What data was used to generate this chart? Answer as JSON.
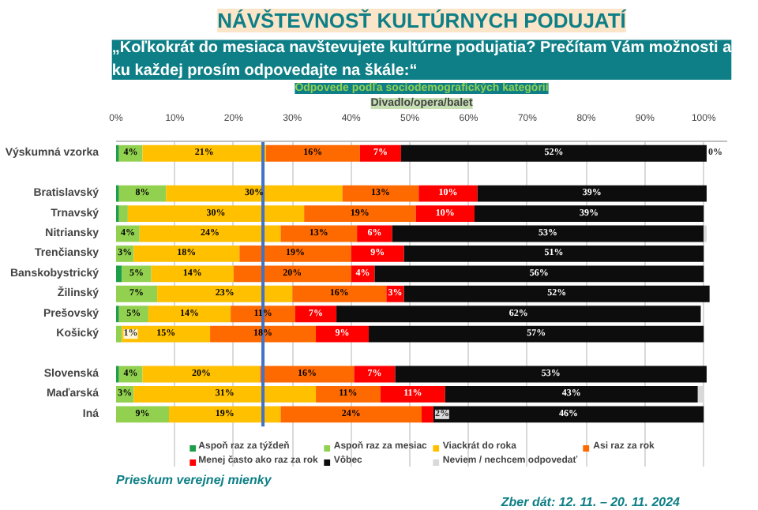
{
  "chart_data": {
    "type": "bar",
    "orientation": "horizontal",
    "stacked": true,
    "title": "NÁVŠTEVNOSŤ KULTÚRNYCH PODUJATÍ",
    "subtitle": "„Koľkokrát do mesiaca navštevujete kultúrne podujatia? Prečítam Vám možnosti a ku každej prosím odpovedajte na škále:“",
    "annotations": [
      "Odpovede podľa sociodemografických kategórií",
      "Divadlo/opera/balet",
      "Prieskum verejnej mienky",
      "Zber dát: 12. 11. – 20. 11. 2024"
    ],
    "categories": [
      "Výskumná vzorka",
      null,
      "Bratislavský",
      "Trnavský",
      "Nitriansky",
      "Trenčiansky",
      "Banskobystrický",
      "Žilinský",
      "Prešovský",
      "Košický",
      null,
      "Slovenská",
      "Maďarská",
      "Iná"
    ],
    "series": [
      {
        "name": "Aspoň raz za týždeň",
        "color": "#1f9e4a",
        "values": [
          0.5,
          null,
          0.5,
          0.5,
          0,
          0,
          1,
          0,
          0.5,
          0,
          null,
          0.5,
          0,
          0
        ],
        "value_labels": [
          null,
          null,
          null,
          null,
          null,
          null,
          null,
          null,
          null,
          null,
          null,
          null,
          null,
          null
        ]
      },
      {
        "name": "Aspoň raz za mesiac",
        "color": "#92d050",
        "values": [
          4,
          null,
          8,
          1.5,
          4,
          3,
          5,
          7,
          5,
          1,
          null,
          4,
          3,
          9
        ],
        "value_labels": [
          "4%",
          null,
          "8%",
          null,
          "4%",
          "3%",
          "5%",
          "7%",
          "5%",
          "1%",
          null,
          "4%",
          "3%",
          "9%"
        ]
      },
      {
        "name": "Viackrát do roka",
        "color": "#ffc000",
        "values": [
          21,
          null,
          30,
          30,
          24,
          18,
          14,
          23,
          14,
          15,
          null,
          20,
          31,
          19
        ],
        "value_labels": [
          "21%",
          null,
          "30%",
          "30%",
          "24%",
          "18%",
          "14%",
          "23%",
          "14%",
          "15%",
          null,
          "20%",
          "31%",
          "19%"
        ]
      },
      {
        "name": "Asi raz za rok",
        "color": "#ff6a00",
        "values": [
          16,
          null,
          13,
          19,
          13,
          19,
          20,
          16,
          11,
          18,
          null,
          16,
          11,
          24
        ],
        "value_labels": [
          "16%",
          null,
          "13%",
          "19%",
          "13%",
          "19%",
          "20%",
          "16%",
          "11%",
          "18%",
          null,
          "16%",
          "11%",
          "24%"
        ]
      },
      {
        "name": "Menej často ako raz za rok",
        "color": "#ff0000",
        "values": [
          7,
          null,
          10,
          10,
          6,
          9,
          4,
          3,
          7,
          9,
          null,
          7,
          11,
          2
        ],
        "value_labels": [
          "7%",
          null,
          "10%",
          "10%",
          "6%",
          "9%",
          "4%",
          "3%",
          "7%",
          "9%",
          null,
          "7%",
          "11%",
          "2%"
        ]
      },
      {
        "name": "Vôbec",
        "color": "#0d0d0d",
        "values": [
          52,
          null,
          39,
          39,
          53,
          51,
          56,
          52,
          62,
          57,
          null,
          53,
          43,
          46
        ],
        "value_labels": [
          "52%",
          null,
          "39%",
          "39%",
          "53%",
          "51%",
          "56%",
          "52%",
          "62%",
          "57%",
          null,
          "53%",
          "43%",
          "46%"
        ]
      },
      {
        "name": "Neviem / nechcem odpovedať",
        "color": "#d9d9d9",
        "values": [
          0,
          null,
          0,
          0,
          0.5,
          0,
          0,
          0,
          0,
          0,
          null,
          0,
          1,
          0
        ],
        "value_labels": [
          "0%",
          null,
          null,
          null,
          null,
          null,
          null,
          null,
          null,
          null,
          null,
          null,
          null,
          null
        ]
      }
    ],
    "xlim": [
      0,
      104
    ],
    "xticks": [
      {
        "value": 0,
        "label": "0%"
      },
      {
        "value": 10,
        "label": "10%"
      },
      {
        "value": 20,
        "label": "20%"
      },
      {
        "value": 30,
        "label": "30%"
      },
      {
        "value": 40,
        "label": "40%"
      },
      {
        "value": 50,
        "label": "50%"
      },
      {
        "value": 60,
        "label": "60%"
      },
      {
        "value": 70,
        "label": "70%"
      },
      {
        "value": 80,
        "label": "80%"
      },
      {
        "value": 90,
        "label": "90%"
      },
      {
        "value": 100,
        "label": "100%"
      }
    ],
    "ref_lines": [
      {
        "axis": "x",
        "value": 25,
        "label": null,
        "color": "#4472c4"
      }
    ],
    "grid": "x",
    "legend": "bottom"
  }
}
